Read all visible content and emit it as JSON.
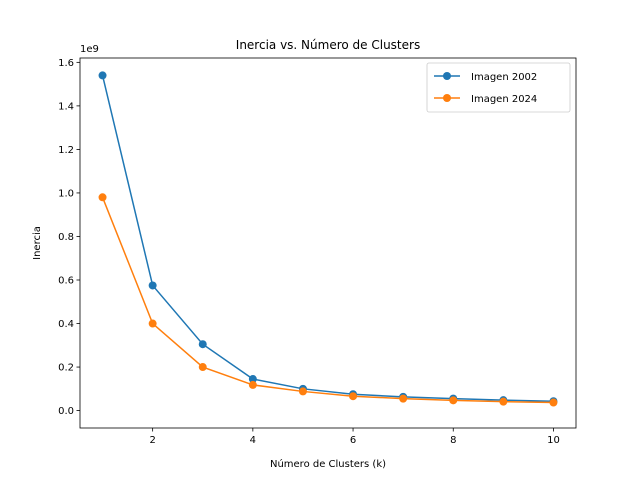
{
  "chart_data": {
    "type": "line",
    "title": "Inercia vs. Número de Clusters",
    "xlabel": "Número de Clusters (k)",
    "ylabel": "Inercia",
    "y_offset_label": "1e9",
    "xlim": [
      0.55,
      10.45
    ],
    "ylim": [
      -0.08,
      1.62
    ],
    "x_ticks": [
      2,
      4,
      6,
      8,
      10
    ],
    "x_tick_labels": [
      "2",
      "4",
      "6",
      "8",
      "10"
    ],
    "y_ticks": [
      0.0,
      0.2,
      0.4,
      0.6,
      0.8,
      1.0,
      1.2,
      1.4,
      1.6
    ],
    "y_tick_labels": [
      "0.0",
      "0.2",
      "0.4",
      "0.6",
      "0.8",
      "1.0",
      "1.2",
      "1.4",
      "1.6"
    ],
    "grid": false,
    "legend_position": "top-right",
    "x": [
      1,
      2,
      3,
      4,
      5,
      6,
      7,
      8,
      9,
      10
    ],
    "series": [
      {
        "name": "Imagen 2002",
        "color": "#1f77b4",
        "values": [
          1.54,
          0.575,
          0.305,
          0.145,
          0.1,
          0.075,
          0.063,
          0.055,
          0.048,
          0.043
        ]
      },
      {
        "name": "Imagen 2024",
        "color": "#ff7f0e",
        "values": [
          0.98,
          0.4,
          0.2,
          0.118,
          0.088,
          0.066,
          0.055,
          0.047,
          0.041,
          0.037
        ]
      }
    ]
  }
}
